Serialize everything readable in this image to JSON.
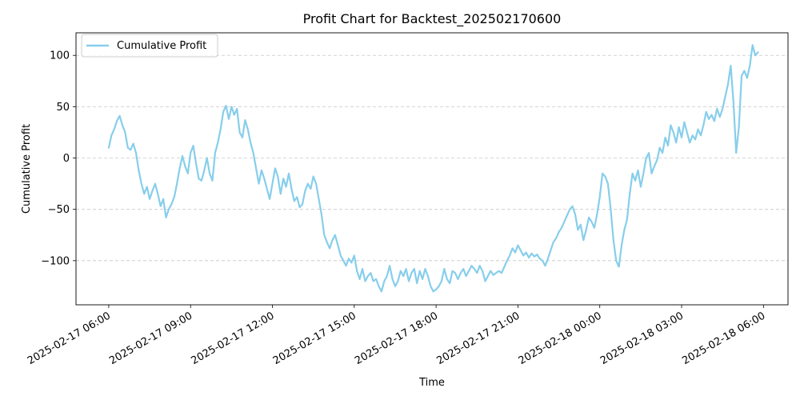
{
  "chart_data": {
    "type": "line",
    "title": "Profit Chart for Backtest_202502170600",
    "xlabel": "Time",
    "ylabel": "Cumulative Profit",
    "grid": "y-dashed",
    "legend_position": "top-left",
    "xlim": [
      "2025-02-17 04:48",
      "2025-02-18 06:54"
    ],
    "ylim": [
      -143,
      122
    ],
    "x_ticks": [
      {
        "value": "2025-02-17 06:00",
        "label": "2025-02-17 06:00"
      },
      {
        "value": "2025-02-17 09:00",
        "label": "2025-02-17 09:00"
      },
      {
        "value": "2025-02-17 12:00",
        "label": "2025-02-17 12:00"
      },
      {
        "value": "2025-02-17 15:00",
        "label": "2025-02-17 15:00"
      },
      {
        "value": "2025-02-17 18:00",
        "label": "2025-02-17 18:00"
      },
      {
        "value": "2025-02-17 21:00",
        "label": "2025-02-17 21:00"
      },
      {
        "value": "2025-02-18 00:00",
        "label": "2025-02-18 00:00"
      },
      {
        "value": "2025-02-18 03:00",
        "label": "2025-02-18 03:00"
      },
      {
        "value": "2025-02-18 06:00",
        "label": "2025-02-18 06:00"
      }
    ],
    "y_ticks": [
      {
        "value": 100,
        "label": "100"
      },
      {
        "value": 50,
        "label": "50"
      },
      {
        "value": 0,
        "label": "0"
      },
      {
        "value": -50,
        "label": "−50"
      },
      {
        "value": -100,
        "label": "−100"
      }
    ],
    "series": [
      {
        "name": "Cumulative Profit",
        "color": "#87ceeb",
        "points": [
          [
            "2025-02-17 06:00",
            10
          ],
          [
            "2025-02-17 06:06",
            22
          ],
          [
            "2025-02-17 06:12",
            28
          ],
          [
            "2025-02-17 06:18",
            36
          ],
          [
            "2025-02-17 06:24",
            41
          ],
          [
            "2025-02-17 06:30",
            32
          ],
          [
            "2025-02-17 06:36",
            25
          ],
          [
            "2025-02-17 06:42",
            10
          ],
          [
            "2025-02-17 06:48",
            8
          ],
          [
            "2025-02-17 06:54",
            14
          ],
          [
            "2025-02-17 07:00",
            5
          ],
          [
            "2025-02-17 07:06",
            -12
          ],
          [
            "2025-02-17 07:12",
            -25
          ],
          [
            "2025-02-17 07:18",
            -35
          ],
          [
            "2025-02-17 07:24",
            -28
          ],
          [
            "2025-02-17 07:30",
            -40
          ],
          [
            "2025-02-17 07:36",
            -32
          ],
          [
            "2025-02-17 07:42",
            -25
          ],
          [
            "2025-02-17 07:48",
            -35
          ],
          [
            "2025-02-17 07:54",
            -47
          ],
          [
            "2025-02-17 08:00",
            -40
          ],
          [
            "2025-02-17 08:06",
            -58
          ],
          [
            "2025-02-17 08:12",
            -50
          ],
          [
            "2025-02-17 08:18",
            -45
          ],
          [
            "2025-02-17 08:24",
            -38
          ],
          [
            "2025-02-17 08:30",
            -25
          ],
          [
            "2025-02-17 08:36",
            -10
          ],
          [
            "2025-02-17 08:42",
            2
          ],
          [
            "2025-02-17 08:48",
            -8
          ],
          [
            "2025-02-17 08:54",
            -15
          ],
          [
            "2025-02-17 09:00",
            5
          ],
          [
            "2025-02-17 09:06",
            12
          ],
          [
            "2025-02-17 09:12",
            -5
          ],
          [
            "2025-02-17 09:18",
            -20
          ],
          [
            "2025-02-17 09:24",
            -22
          ],
          [
            "2025-02-17 09:30",
            -12
          ],
          [
            "2025-02-17 09:36",
            0
          ],
          [
            "2025-02-17 09:42",
            -15
          ],
          [
            "2025-02-17 09:48",
            -22
          ],
          [
            "2025-02-17 09:54",
            5
          ],
          [
            "2025-02-17 10:00",
            15
          ],
          [
            "2025-02-17 10:06",
            28
          ],
          [
            "2025-02-17 10:12",
            45
          ],
          [
            "2025-02-17 10:18",
            51
          ],
          [
            "2025-02-17 10:24",
            38
          ],
          [
            "2025-02-17 10:30",
            50
          ],
          [
            "2025-02-17 10:36",
            42
          ],
          [
            "2025-02-17 10:42",
            48
          ],
          [
            "2025-02-17 10:48",
            25
          ],
          [
            "2025-02-17 10:54",
            20
          ],
          [
            "2025-02-17 11:00",
            37
          ],
          [
            "2025-02-17 11:06",
            28
          ],
          [
            "2025-02-17 11:12",
            15
          ],
          [
            "2025-02-17 11:18",
            5
          ],
          [
            "2025-02-17 11:24",
            -10
          ],
          [
            "2025-02-17 11:30",
            -25
          ],
          [
            "2025-02-17 11:36",
            -12
          ],
          [
            "2025-02-17 11:42",
            -20
          ],
          [
            "2025-02-17 11:48",
            -30
          ],
          [
            "2025-02-17 11:54",
            -40
          ],
          [
            "2025-02-17 12:00",
            -25
          ],
          [
            "2025-02-17 12:06",
            -10
          ],
          [
            "2025-02-17 12:12",
            -18
          ],
          [
            "2025-02-17 12:18",
            -35
          ],
          [
            "2025-02-17 12:24",
            -20
          ],
          [
            "2025-02-17 12:30",
            -28
          ],
          [
            "2025-02-17 12:36",
            -15
          ],
          [
            "2025-02-17 12:42",
            -30
          ],
          [
            "2025-02-17 12:48",
            -42
          ],
          [
            "2025-02-17 12:54",
            -38
          ],
          [
            "2025-02-17 13:00",
            -48
          ],
          [
            "2025-02-17 13:06",
            -45
          ],
          [
            "2025-02-17 13:12",
            -32
          ],
          [
            "2025-02-17 13:18",
            -25
          ],
          [
            "2025-02-17 13:24",
            -30
          ],
          [
            "2025-02-17 13:30",
            -18
          ],
          [
            "2025-02-17 13:36",
            -25
          ],
          [
            "2025-02-17 13:42",
            -40
          ],
          [
            "2025-02-17 13:48",
            -55
          ],
          [
            "2025-02-17 13:54",
            -75
          ],
          [
            "2025-02-17 14:00",
            -82
          ],
          [
            "2025-02-17 14:06",
            -88
          ],
          [
            "2025-02-17 14:12",
            -80
          ],
          [
            "2025-02-17 14:18",
            -75
          ],
          [
            "2025-02-17 14:24",
            -85
          ],
          [
            "2025-02-17 14:30",
            -95
          ],
          [
            "2025-02-17 14:36",
            -100
          ],
          [
            "2025-02-17 14:42",
            -105
          ],
          [
            "2025-02-17 14:48",
            -98
          ],
          [
            "2025-02-17 14:54",
            -102
          ],
          [
            "2025-02-17 15:00",
            -95
          ],
          [
            "2025-02-17 15:06",
            -110
          ],
          [
            "2025-02-17 15:12",
            -118
          ],
          [
            "2025-02-17 15:18",
            -108
          ],
          [
            "2025-02-17 15:24",
            -120
          ],
          [
            "2025-02-17 15:30",
            -115
          ],
          [
            "2025-02-17 15:36",
            -112
          ],
          [
            "2025-02-17 15:42",
            -120
          ],
          [
            "2025-02-17 15:48",
            -118
          ],
          [
            "2025-02-17 15:54",
            -125
          ],
          [
            "2025-02-17 16:00",
            -130
          ],
          [
            "2025-02-17 16:06",
            -120
          ],
          [
            "2025-02-17 16:12",
            -115
          ],
          [
            "2025-02-17 16:18",
            -105
          ],
          [
            "2025-02-17 16:24",
            -118
          ],
          [
            "2025-02-17 16:30",
            -125
          ],
          [
            "2025-02-17 16:36",
            -120
          ],
          [
            "2025-02-17 16:42",
            -110
          ],
          [
            "2025-02-17 16:48",
            -115
          ],
          [
            "2025-02-17 16:54",
            -108
          ],
          [
            "2025-02-17 17:00",
            -120
          ],
          [
            "2025-02-17 17:06",
            -112
          ],
          [
            "2025-02-17 17:12",
            -108
          ],
          [
            "2025-02-17 17:18",
            -122
          ],
          [
            "2025-02-17 17:24",
            -110
          ],
          [
            "2025-02-17 17:30",
            -118
          ],
          [
            "2025-02-17 17:36",
            -108
          ],
          [
            "2025-02-17 17:42",
            -115
          ],
          [
            "2025-02-17 17:48",
            -125
          ],
          [
            "2025-02-17 17:54",
            -130
          ],
          [
            "2025-02-17 18:00",
            -128
          ],
          [
            "2025-02-17 18:06",
            -125
          ],
          [
            "2025-02-17 18:12",
            -120
          ],
          [
            "2025-02-17 18:18",
            -108
          ],
          [
            "2025-02-17 18:24",
            -118
          ],
          [
            "2025-02-17 18:30",
            -122
          ],
          [
            "2025-02-17 18:36",
            -110
          ],
          [
            "2025-02-17 18:42",
            -112
          ],
          [
            "2025-02-17 18:48",
            -118
          ],
          [
            "2025-02-17 18:54",
            -112
          ],
          [
            "2025-02-17 19:00",
            -108
          ],
          [
            "2025-02-17 19:06",
            -115
          ],
          [
            "2025-02-17 19:12",
            -110
          ],
          [
            "2025-02-17 19:18",
            -105
          ],
          [
            "2025-02-17 19:24",
            -108
          ],
          [
            "2025-02-17 19:30",
            -112
          ],
          [
            "2025-02-17 19:36",
            -105
          ],
          [
            "2025-02-17 19:42",
            -110
          ],
          [
            "2025-02-17 19:48",
            -120
          ],
          [
            "2025-02-17 19:54",
            -115
          ],
          [
            "2025-02-17 20:00",
            -110
          ],
          [
            "2025-02-17 20:06",
            -114
          ],
          [
            "2025-02-17 20:12",
            -112
          ],
          [
            "2025-02-17 20:18",
            -110
          ],
          [
            "2025-02-17 20:24",
            -112
          ],
          [
            "2025-02-17 20:30",
            -106
          ],
          [
            "2025-02-17 20:36",
            -100
          ],
          [
            "2025-02-17 20:42",
            -95
          ],
          [
            "2025-02-17 20:48",
            -88
          ],
          [
            "2025-02-17 20:54",
            -92
          ],
          [
            "2025-02-17 21:00",
            -85
          ],
          [
            "2025-02-17 21:06",
            -90
          ],
          [
            "2025-02-17 21:12",
            -95
          ],
          [
            "2025-02-17 21:18",
            -92
          ],
          [
            "2025-02-17 21:24",
            -97
          ],
          [
            "2025-02-17 21:30",
            -93
          ],
          [
            "2025-02-17 21:36",
            -96
          ],
          [
            "2025-02-17 21:42",
            -94
          ],
          [
            "2025-02-17 21:48",
            -98
          ],
          [
            "2025-02-17 21:54",
            -100
          ],
          [
            "2025-02-17 22:00",
            -105
          ],
          [
            "2025-02-17 22:06",
            -98
          ],
          [
            "2025-02-17 22:12",
            -90
          ],
          [
            "2025-02-17 22:18",
            -82
          ],
          [
            "2025-02-17 22:24",
            -78
          ],
          [
            "2025-02-17 22:30",
            -72
          ],
          [
            "2025-02-17 22:36",
            -68
          ],
          [
            "2025-02-17 22:42",
            -62
          ],
          [
            "2025-02-17 22:48",
            -56
          ],
          [
            "2025-02-17 22:54",
            -50
          ],
          [
            "2025-02-17 23:00",
            -47
          ],
          [
            "2025-02-17 23:06",
            -55
          ],
          [
            "2025-02-17 23:12",
            -70
          ],
          [
            "2025-02-17 23:18",
            -65
          ],
          [
            "2025-02-17 23:24",
            -80
          ],
          [
            "2025-02-17 23:30",
            -70
          ],
          [
            "2025-02-17 23:36",
            -58
          ],
          [
            "2025-02-17 23:42",
            -62
          ],
          [
            "2025-02-17 23:48",
            -68
          ],
          [
            "2025-02-17 23:54",
            -55
          ],
          [
            "2025-02-18 00:00",
            -38
          ],
          [
            "2025-02-18 00:06",
            -15
          ],
          [
            "2025-02-18 00:12",
            -18
          ],
          [
            "2025-02-18 00:18",
            -25
          ],
          [
            "2025-02-18 00:24",
            -50
          ],
          [
            "2025-02-18 00:30",
            -80
          ],
          [
            "2025-02-18 00:36",
            -100
          ],
          [
            "2025-02-18 00:42",
            -106
          ],
          [
            "2025-02-18 00:48",
            -85
          ],
          [
            "2025-02-18 00:54",
            -70
          ],
          [
            "2025-02-18 01:00",
            -60
          ],
          [
            "2025-02-18 01:06",
            -35
          ],
          [
            "2025-02-18 01:12",
            -15
          ],
          [
            "2025-02-18 01:18",
            -22
          ],
          [
            "2025-02-18 01:24",
            -12
          ],
          [
            "2025-02-18 01:30",
            -28
          ],
          [
            "2025-02-18 01:36",
            -15
          ],
          [
            "2025-02-18 01:42",
            0
          ],
          [
            "2025-02-18 01:48",
            5
          ],
          [
            "2025-02-18 01:54",
            -15
          ],
          [
            "2025-02-18 02:00",
            -8
          ],
          [
            "2025-02-18 02:06",
            -2
          ],
          [
            "2025-02-18 02:12",
            10
          ],
          [
            "2025-02-18 02:18",
            5
          ],
          [
            "2025-02-18 02:24",
            20
          ],
          [
            "2025-02-18 02:30",
            12
          ],
          [
            "2025-02-18 02:36",
            32
          ],
          [
            "2025-02-18 02:42",
            25
          ],
          [
            "2025-02-18 02:48",
            15
          ],
          [
            "2025-02-18 02:54",
            30
          ],
          [
            "2025-02-18 03:00",
            20
          ],
          [
            "2025-02-18 03:06",
            35
          ],
          [
            "2025-02-18 03:12",
            25
          ],
          [
            "2025-02-18 03:18",
            15
          ],
          [
            "2025-02-18 03:24",
            22
          ],
          [
            "2025-02-18 03:30",
            18
          ],
          [
            "2025-02-18 03:36",
            28
          ],
          [
            "2025-02-18 03:42",
            22
          ],
          [
            "2025-02-18 03:48",
            32
          ],
          [
            "2025-02-18 03:54",
            45
          ],
          [
            "2025-02-18 04:00",
            38
          ],
          [
            "2025-02-18 04:06",
            42
          ],
          [
            "2025-02-18 04:12",
            36
          ],
          [
            "2025-02-18 04:18",
            48
          ],
          [
            "2025-02-18 04:24",
            40
          ],
          [
            "2025-02-18 04:30",
            48
          ],
          [
            "2025-02-18 04:36",
            60
          ],
          [
            "2025-02-18 04:42",
            72
          ],
          [
            "2025-02-18 04:48",
            90
          ],
          [
            "2025-02-18 04:54",
            55
          ],
          [
            "2025-02-18 05:00",
            5
          ],
          [
            "2025-02-18 05:06",
            30
          ],
          [
            "2025-02-18 05:12",
            80
          ],
          [
            "2025-02-18 05:18",
            85
          ],
          [
            "2025-02-18 05:24",
            78
          ],
          [
            "2025-02-18 05:30",
            90
          ],
          [
            "2025-02-18 05:36",
            110
          ],
          [
            "2025-02-18 05:42",
            100
          ],
          [
            "2025-02-18 05:48",
            103
          ]
        ]
      }
    ]
  }
}
